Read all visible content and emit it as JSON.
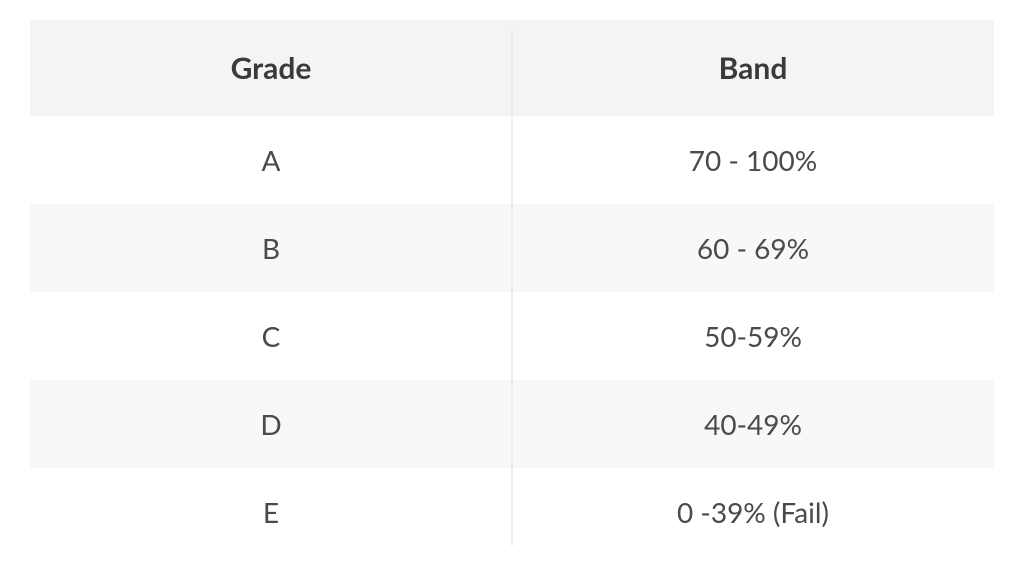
{
  "table": {
    "columns": [
      "Grade",
      "Band"
    ],
    "rows": [
      [
        "A",
        "70 - 100%"
      ],
      [
        "B",
        "60 - 69%"
      ],
      [
        "C",
        "50-59%"
      ],
      [
        "D",
        "40-49%"
      ],
      [
        "E",
        "0 -39% (Fail)"
      ]
    ],
    "header_bg": "#f4f4f4",
    "row_even_bg": "#ffffff",
    "row_odd_bg": "#f8f8f8",
    "text_color": "#4a4a4a",
    "header_text_color": "#3a3a3a",
    "divider_color": "#e0e0e0",
    "header_fontsize": 30,
    "cell_fontsize": 28,
    "header_fontweight": 700,
    "cell_fontweight": 400
  }
}
